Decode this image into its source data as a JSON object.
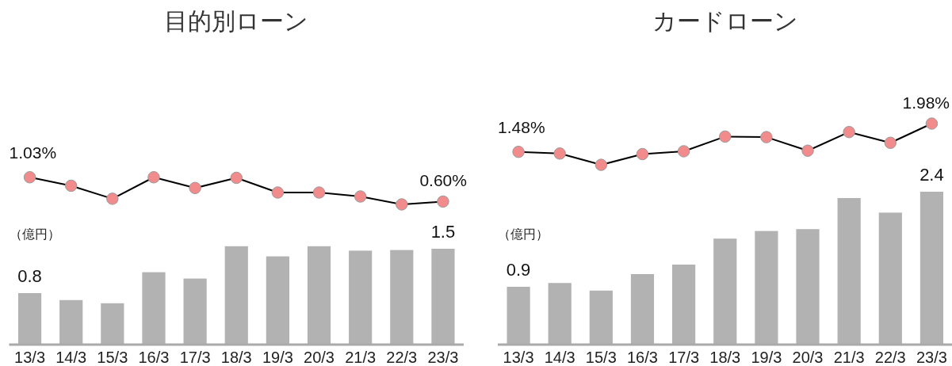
{
  "chart_data": [
    {
      "type": "line",
      "title": "目的別ローン",
      "categories": [
        null,
        null,
        null,
        null,
        null,
        null,
        null,
        null,
        null,
        null,
        null
      ],
      "color": "#000000",
      "colors": [
        "#f28b8b",
        "#f28b8b",
        "#f28b8b",
        "#f28b8b",
        "#f28b8b",
        "#f28b8b",
        "#f28b8b",
        "#f28b8b",
        "#f28b8b",
        "#f28b8b",
        "#f28b8b"
      ],
      "values": [
        1.03,
        0.88,
        0.65,
        1.03,
        0.84,
        1.02,
        0.76,
        0.76,
        0.69,
        0.55,
        0.6
      ],
      "value_labels": [
        "1.03%",
        null,
        null,
        null,
        null,
        null,
        null,
        null,
        null,
        null,
        "0.60%"
      ],
      "marker": "circle"
    },
    {
      "type": "bar",
      "ylabel": "（億円）",
      "categories": [
        "13/3",
        "14/3",
        "15/3",
        "16/3",
        "17/3",
        "18/3",
        "19/3",
        "20/3",
        "21/3",
        "22/3",
        "23/3"
      ],
      "color": "#b2b2b2",
      "values": [
        0.8,
        0.69,
        0.64,
        1.13,
        1.03,
        1.54,
        1.38,
        1.54,
        1.47,
        1.48,
        1.5
      ],
      "value_labels": [
        "0.8",
        null,
        null,
        null,
        null,
        null,
        null,
        null,
        null,
        null,
        "1.5"
      ]
    },
    {
      "type": "line",
      "title": "カードローン",
      "categories": [
        null,
        null,
        null,
        null,
        null,
        null,
        null,
        null,
        null,
        null,
        null
      ],
      "color": "#000000",
      "colors": [
        "#f28b8b",
        "#f28b8b",
        "#f28b8b",
        "#f28b8b",
        "#f28b8b",
        "#f28b8b",
        "#f28b8b",
        "#f28b8b",
        "#f28b8b",
        "#f28b8b",
        "#f28b8b"
      ],
      "values": [
        1.48,
        1.45,
        1.25,
        1.44,
        1.49,
        1.75,
        1.74,
        1.5,
        1.83,
        1.64,
        1.98
      ],
      "value_labels": [
        "1.48%",
        null,
        null,
        null,
        null,
        null,
        null,
        null,
        null,
        null,
        "1.98%"
      ],
      "marker": "circle"
    },
    {
      "type": "bar",
      "ylabel": "（億円）",
      "categories": [
        "13/3",
        "14/3",
        "15/3",
        "16/3",
        "17/3",
        "18/3",
        "19/3",
        "20/3",
        "21/3",
        "22/3",
        "23/3"
      ],
      "color": "#b2b2b2",
      "values": [
        0.9,
        0.96,
        0.84,
        1.1,
        1.25,
        1.66,
        1.78,
        1.81,
        2.3,
        2.07,
        2.4
      ],
      "value_labels": [
        "0.9",
        null,
        null,
        null,
        null,
        null,
        null,
        null,
        null,
        null,
        "2.4"
      ]
    }
  ]
}
